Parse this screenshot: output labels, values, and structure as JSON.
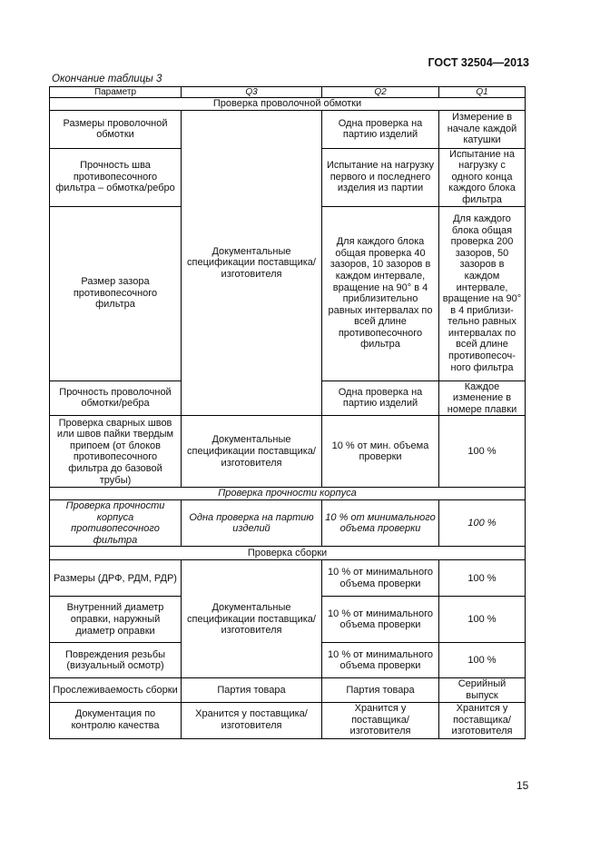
{
  "header": {
    "standard": "ГОСТ 32504—2013"
  },
  "caption": "Окончание таблицы 3",
  "table": {
    "columns": [
      "Параметр",
      "Q3",
      "Q2",
      "Q1"
    ],
    "rows": [
      {
        "h": 13,
        "cells": [
          {
            "text": "Проверка проволочной обмотки",
            "colspan": 4,
            "section": true
          }
        ]
      },
      {
        "h": 42,
        "cells": [
          {
            "text": "Размеры проволочной обмотки"
          },
          {
            "text": "Документальные спецификации поставщика/изготовителя",
            "rowspan": 4
          },
          {
            "text": "Одна проверка на партию изделий"
          },
          {
            "text": "Измерение в начале каждой катушки"
          }
        ]
      },
      {
        "h": 64,
        "cells": [
          {
            "text": "Прочность шва противопесочного фильтра – обмотка/ребро"
          },
          {
            "text": "Испытание на нагрузку первого и последнего изделия из партии"
          },
          {
            "text": "Испытание на нагрузку с одного конца каждого блока фильтра"
          }
        ]
      },
      {
        "h": 192,
        "cells": [
          {
            "text": "Размер зазора противопесочного фильтра"
          },
          {
            "text": "Для каждого блока общая проверка 40 зазоров, 10 зазоров в каждом интервале, вращение на 90° в 4 приблизительно равных интервалах по всей длине противопесочного фильтра"
          },
          {
            "text": "Для каждого блока общая проверка 200 зазоров, 50 зазоров в каждом интервале, вращение на 90° в 4 приблизи-тельно равных интервалах по всей длине противопесоч-ного фильтра"
          }
        ]
      },
      {
        "h": 38,
        "cells": [
          {
            "text": "Прочность проволочной обмотки/ребра"
          },
          {
            "text": "Одна проверка на партию изделий"
          },
          {
            "text": "Каждое изменение в номере плавки"
          }
        ]
      },
      {
        "h": 79,
        "cells": [
          {
            "text": "Проверка сварных швов или швов пайки твердым припоем (от блоков противопесочного фильтра до базовой трубы)"
          },
          {
            "text": "Документальные спецификации поставщика/изготовителя"
          },
          {
            "text": "10 % от мин. объема проверки"
          },
          {
            "text": "100 %"
          }
        ]
      },
      {
        "h": 12,
        "cells": [
          {
            "text": "Проверка прочности корпуса",
            "colspan": 4,
            "section": true,
            "italic": true
          }
        ]
      },
      {
        "h": 50,
        "cells": [
          {
            "text": "Проверка прочности корпуса противопесочного фильтра",
            "italic": true
          },
          {
            "text": "Одна проверка на партию изделий",
            "italic": true
          },
          {
            "text": "10 % от минимального объема проверки",
            "italic": true
          },
          {
            "text": "100 %",
            "italic": true
          }
        ]
      },
      {
        "h": 15,
        "cells": [
          {
            "text": "Проверка сборки",
            "colspan": 4,
            "section": true
          }
        ]
      },
      {
        "h": 40,
        "cells": [
          {
            "text": "Размеры (ДРФ, РДМ, РДР)"
          },
          {
            "text": "Документальные спецификации поставщика/ изготовителя",
            "rowspan": 3
          },
          {
            "text": "10 % от минимального объема проверки"
          },
          {
            "text": "100 %"
          }
        ]
      },
      {
        "h": 51,
        "cells": [
          {
            "text": "Внутренний диаметр оправки, наружный диаметр оправки"
          },
          {
            "text": "10 % от минимального объема проверки"
          },
          {
            "text": "100 %"
          }
        ]
      },
      {
        "h": 39,
        "cells": [
          {
            "text": "Повреждения резьбы (визуальный осмотр)"
          },
          {
            "text": "10 % от минимального объема проверки"
          },
          {
            "text": "100 %"
          }
        ]
      },
      {
        "h": 25,
        "cells": [
          {
            "text": "Прослеживаемость сборки"
          },
          {
            "text": "Партия товара"
          },
          {
            "text": "Партия товара"
          },
          {
            "text": "Серийный выпуск"
          }
        ]
      },
      {
        "h": 40,
        "cells": [
          {
            "text": "Документация по контролю качества"
          },
          {
            "text": "Хранится у поставщика/ изготовителя"
          },
          {
            "text": "Хранится у поставщика/ изготовителя"
          },
          {
            "text": "Хранится у поставщика/ изготовителя"
          }
        ]
      }
    ]
  },
  "page_number": "15"
}
